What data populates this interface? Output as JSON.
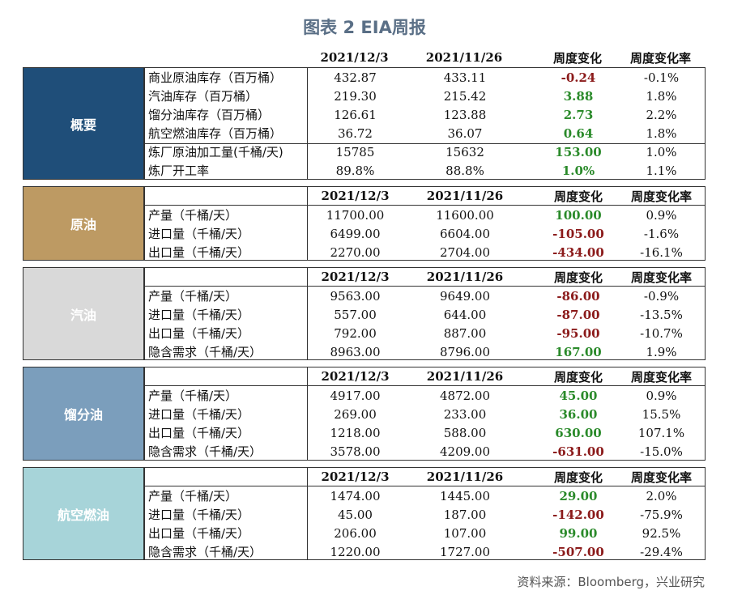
{
  "title": "图表 2 EIA周报",
  "columns": [
    "2021/12/3",
    "2021/11/26",
    "周度变化",
    "周度变化率"
  ],
  "colors": {
    "summary": "#1f4e79",
    "crude": "#bd9a63",
    "gasoline": "#d9d9d9",
    "distillate": "#7b9ebc",
    "jet": "#a7d4d9",
    "up": "#2a8a2a",
    "down": "#8b1a1a"
  },
  "sections": [
    {
      "label": "概要",
      "rows": [
        {
          "name": "商业原油库存（百万桶）",
          "a": "432.87",
          "b": "433.11",
          "d": "-0.24",
          "r": "-0.1%",
          "dir": "down"
        },
        {
          "name": "汽油库存（百万桶）",
          "a": "219.30",
          "b": "215.42",
          "d": "3.88",
          "r": "1.8%",
          "dir": "up"
        },
        {
          "name": "馏分油库存（百万桶）",
          "a": "126.61",
          "b": "123.88",
          "d": "2.73",
          "r": "2.2%",
          "dir": "up"
        },
        {
          "name": "航空燃油库存（百万桶）",
          "a": "36.72",
          "b": "36.07",
          "d": "0.64",
          "r": "1.8%",
          "dir": "up"
        },
        {
          "name": "炼厂原油加工量(千桶/天)",
          "a": "15785",
          "b": "15632",
          "d": "153.00",
          "r": "1.0%",
          "dir": "up"
        },
        {
          "name": "炼厂开工率",
          "a": "89.8%",
          "b": "88.8%",
          "d": "1.0%",
          "r": "1.1%",
          "dir": "up"
        }
      ]
    },
    {
      "label": "原油",
      "rows": [
        {
          "name": "产量（千桶/天）",
          "a": "11700.00",
          "b": "11600.00",
          "d": "100.00",
          "r": "0.9%",
          "dir": "up"
        },
        {
          "name": "进口量（千桶/天）",
          "a": "6499.00",
          "b": "6604.00",
          "d": "-105.00",
          "r": "-1.6%",
          "dir": "down"
        },
        {
          "name": "出口量（千桶/天）",
          "a": "2270.00",
          "b": "2704.00",
          "d": "-434.00",
          "r": "-16.1%",
          "dir": "down"
        }
      ]
    },
    {
      "label": "汽油",
      "rows": [
        {
          "name": "产量（千桶/天）",
          "a": "9563.00",
          "b": "9649.00",
          "d": "-86.00",
          "r": "-0.9%",
          "dir": "down"
        },
        {
          "name": "进口量（千桶/天）",
          "a": "557.00",
          "b": "644.00",
          "d": "-87.00",
          "r": "-13.5%",
          "dir": "down"
        },
        {
          "name": "出口量（千桶/天）",
          "a": "792.00",
          "b": "887.00",
          "d": "-95.00",
          "r": "-10.7%",
          "dir": "down"
        },
        {
          "name": "隐含需求（千桶/天）",
          "a": "8963.00",
          "b": "8796.00",
          "d": "167.00",
          "r": "1.9%",
          "dir": "up"
        }
      ]
    },
    {
      "label": "馏分油",
      "rows": [
        {
          "name": "产量（千桶/天）",
          "a": "4917.00",
          "b": "4872.00",
          "d": "45.00",
          "r": "0.9%",
          "dir": "up"
        },
        {
          "name": "进口量（千桶/天）",
          "a": "269.00",
          "b": "233.00",
          "d": "36.00",
          "r": "15.5%",
          "dir": "up"
        },
        {
          "name": "出口量（千桶/天）",
          "a": "1218.00",
          "b": "588.00",
          "d": "630.00",
          "r": "107.1%",
          "dir": "up"
        },
        {
          "name": "隐含需求（千桶/天）",
          "a": "3578.00",
          "b": "4209.00",
          "d": "-631.00",
          "r": "-15.0%",
          "dir": "down"
        }
      ]
    },
    {
      "label": "航空燃油",
      "rows": [
        {
          "name": "产量（千桶/天）",
          "a": "1474.00",
          "b": "1445.00",
          "d": "29.00",
          "r": "2.0%",
          "dir": "up"
        },
        {
          "name": "进口量（千桶/天）",
          "a": "45.00",
          "b": "187.00",
          "d": "-142.00",
          "r": "-75.9%",
          "dir": "down"
        },
        {
          "name": "出口量（千桶/天）",
          "a": "206.00",
          "b": "107.00",
          "d": "99.00",
          "r": "92.5%",
          "dir": "up"
        },
        {
          "name": "隐含需求（千桶/天）",
          "a": "1220.00",
          "b": "1727.00",
          "d": "-507.00",
          "r": "-29.4%",
          "dir": "down"
        }
      ]
    }
  ],
  "source": "资料来源：Bloomberg，兴业研究"
}
